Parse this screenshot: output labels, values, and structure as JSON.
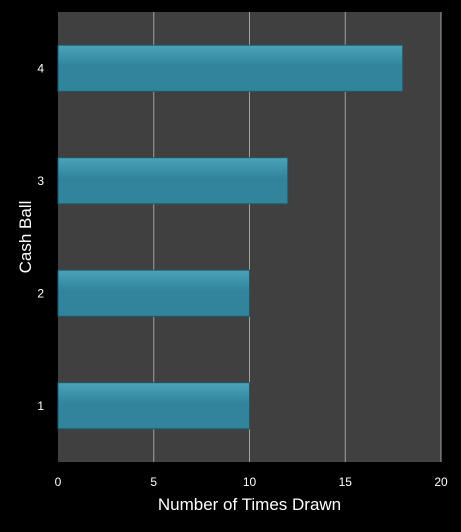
{
  "colors": {
    "background": "#000000",
    "plot_area": "#404040",
    "gridline": "#a0a0a0",
    "bar_fill": "#31849b",
    "bar_fill_light": "#4aa3ba",
    "bar_stroke": "#1f5968",
    "text": "#ffffff"
  },
  "chart_data": {
    "type": "bar",
    "orientation": "horizontal",
    "categories": [
      "1",
      "2",
      "3",
      "4"
    ],
    "values": [
      10,
      10,
      12,
      18
    ],
    "xlabel": "Number of Times Drawn",
    "ylabel": "Cash Ball",
    "xlim": [
      0,
      20
    ],
    "xticks": [
      "0",
      "5",
      "10",
      "15",
      "20"
    ],
    "grid": "vertical major gridlines",
    "legend": "none"
  }
}
